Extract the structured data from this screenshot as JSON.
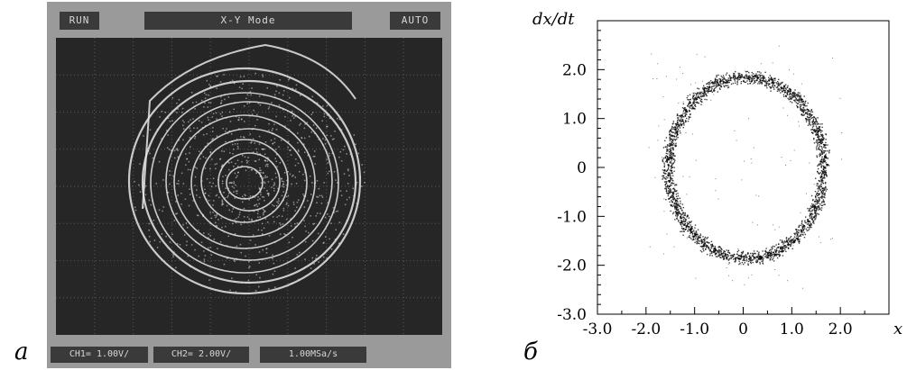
{
  "panels": {
    "left_letter": "а",
    "right_letter": "б"
  },
  "scope": {
    "run_label": "RUN",
    "mode_label": "X-Y Mode",
    "auto_label": "AUTO",
    "ch1_label": "CH1= 1.00V/",
    "ch2_label": "CH2= 2.00V/",
    "rate_label": "1.00MSa/s",
    "colors": {
      "frame": "#9a9a9a",
      "screen": "#262626",
      "trace": "#e8e8e8"
    }
  },
  "chart_data": {
    "type": "scatter",
    "xlabel": "x",
    "ylabel": "dx/dt",
    "xlim": [
      -3.0,
      3.0
    ],
    "ylim": [
      -3.0,
      3.0
    ],
    "xticks": [
      "-3.0",
      "-2.0",
      "-1.0",
      "0",
      "1.0",
      "2.0"
    ],
    "xtick_values": [
      -3.0,
      -2.0,
      -1.0,
      0,
      1.0,
      2.0
    ],
    "yticks": [
      "2.0",
      "1.0",
      "0",
      "-1.0",
      "-2.0",
      "-3.0"
    ],
    "ytick_values": [
      2.0,
      1.0,
      0,
      -1.0,
      -2.0,
      -3.0
    ],
    "grid": false,
    "series": [
      {
        "shape": "ring",
        "center": [
          0.05,
          0.0
        ],
        "radius_x": 1.6,
        "radius_y": 1.85,
        "point_color": "#000000"
      }
    ]
  }
}
